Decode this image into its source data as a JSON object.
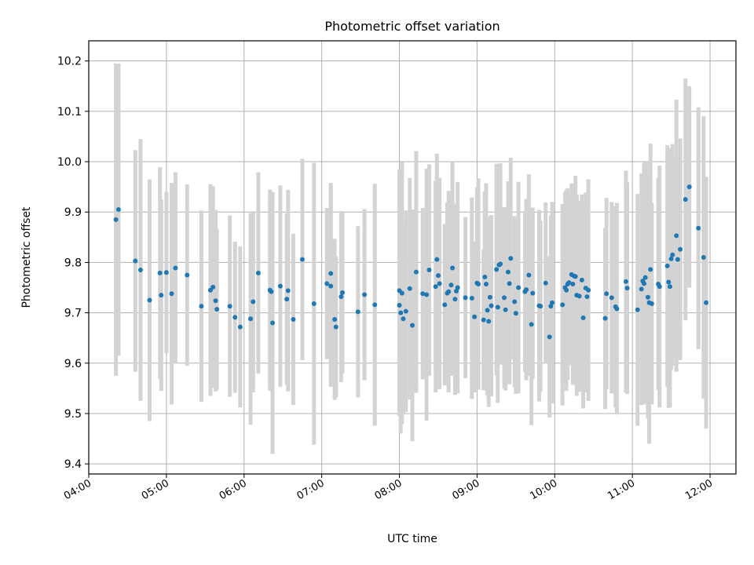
{
  "chart_data": {
    "type": "scatter",
    "title": "Photometric offset variation",
    "xlabel": "UTC time",
    "ylabel": "Photometric offset",
    "xlim": [
      "04:00",
      "12:20"
    ],
    "ylim": [
      9.38,
      10.24
    ],
    "grid": true,
    "x_ticks": [
      "04:00",
      "05:00",
      "06:00",
      "07:00",
      "08:00",
      "09:00",
      "10:00",
      "11:00",
      "12:00"
    ],
    "y_ticks": [
      "9.4",
      "9.5",
      "9.6",
      "9.7",
      "9.8",
      "9.9",
      "10.0",
      "10.1",
      "10.2"
    ],
    "colors": {
      "point": "#1f77b4",
      "errorbar": "#d3d3d3",
      "grid": "#b0b0b0"
    },
    "series": [
      {
        "columns": [
          "time",
          "offset",
          "error"
        ],
        "points": [
          [
            "04:21",
            9.885,
            0.31
          ],
          [
            "04:23",
            9.905,
            0.29
          ],
          [
            "04:36",
            9.803,
            0.22
          ],
          [
            "04:40",
            9.785,
            0.26
          ],
          [
            "04:47",
            9.725,
            0.24
          ],
          [
            "04:55",
            9.779,
            0.21
          ],
          [
            "04:56",
            9.735,
            0.19
          ],
          [
            "05:00",
            9.78,
            0.16
          ],
          [
            "05:04",
            9.738,
            0.22
          ],
          [
            "05:07",
            9.789,
            0.19
          ],
          [
            "05:16",
            9.775,
            0.18
          ],
          [
            "05:27",
            9.713,
            0.19
          ],
          [
            "05:34",
            9.745,
            0.21
          ],
          [
            "05:36",
            9.751,
            0.2
          ],
          [
            "05:38",
            9.724,
            0.18
          ],
          [
            "05:39",
            9.707,
            0.16
          ],
          [
            "05:49",
            9.713,
            0.18
          ],
          [
            "05:53",
            9.691,
            0.15
          ],
          [
            "05:57",
            9.672,
            0.16
          ],
          [
            "06:05",
            9.688,
            0.21
          ],
          [
            "06:07",
            9.722,
            0.18
          ],
          [
            "06:11",
            9.779,
            0.2
          ],
          [
            "06:20",
            9.745,
            0.2
          ],
          [
            "06:21",
            9.742,
            0.18
          ],
          [
            "06:22",
            9.68,
            0.26
          ],
          [
            "06:28",
            9.753,
            0.2
          ],
          [
            "06:33",
            9.727,
            0.17
          ],
          [
            "06:34",
            9.744,
            0.2
          ],
          [
            "06:38",
            9.687,
            0.17
          ],
          [
            "06:45",
            9.806,
            0.2
          ],
          [
            "06:54",
            9.718,
            0.28
          ],
          [
            "07:04",
            9.758,
            0.15
          ],
          [
            "07:07",
            9.778,
            0.18
          ],
          [
            "07:07",
            9.753,
            0.2
          ],
          [
            "07:10",
            9.687,
            0.16
          ],
          [
            "07:11",
            9.672,
            0.14
          ],
          [
            "07:15",
            9.732,
            0.17
          ],
          [
            "07:16",
            9.74,
            0.16
          ],
          [
            "07:28",
            9.702,
            0.17
          ],
          [
            "07:33",
            9.736,
            0.17
          ],
          [
            "07:41",
            9.716,
            0.24
          ],
          [
            "08:00",
            9.744,
            0.24
          ],
          [
            "08:00",
            9.715,
            0.22
          ],
          [
            "08:01",
            9.7,
            0.24
          ],
          [
            "08:02",
            9.739,
            0.26
          ],
          [
            "08:03",
            9.688,
            0.19
          ],
          [
            "08:05",
            9.703,
            0.2
          ],
          [
            "08:08",
            9.748,
            0.22
          ],
          [
            "08:10",
            9.675,
            0.23
          ],
          [
            "08:13",
            9.781,
            0.24
          ],
          [
            "08:18",
            9.738,
            0.17
          ],
          [
            "08:21",
            9.736,
            0.25
          ],
          [
            "08:23",
            9.785,
            0.21
          ],
          [
            "08:28",
            9.752,
            0.21
          ],
          [
            "08:29",
            9.806,
            0.21
          ],
          [
            "08:30",
            9.774,
            0.19
          ],
          [
            "08:31",
            9.758,
            0.21
          ],
          [
            "08:35",
            9.716,
            0.16
          ],
          [
            "08:37",
            9.739,
            0.18
          ],
          [
            "08:38",
            9.742,
            0.2
          ],
          [
            "08:40",
            9.755,
            0.18
          ],
          [
            "08:41",
            9.789,
            0.21
          ],
          [
            "08:43",
            9.727,
            0.19
          ],
          [
            "08:44",
            9.743,
            0.16
          ],
          [
            "08:45",
            9.75,
            0.21
          ],
          [
            "08:51",
            9.73,
            0.16
          ],
          [
            "08:56",
            9.729,
            0.2
          ],
          [
            "08:58",
            9.692,
            0.15
          ],
          [
            "09:00",
            9.759,
            0.19
          ],
          [
            "09:01",
            9.757,
            0.21
          ],
          [
            "09:05",
            9.686,
            0.14
          ],
          [
            "09:06",
            9.771,
            0.17
          ],
          [
            "09:07",
            9.757,
            0.2
          ],
          [
            "09:08",
            9.705,
            0.17
          ],
          [
            "09:09",
            9.683,
            0.17
          ],
          [
            "09:10",
            9.731,
            0.16
          ],
          [
            "09:11",
            9.714,
            0.18
          ],
          [
            "09:15",
            9.786,
            0.21
          ],
          [
            "09:16",
            9.711,
            0.19
          ],
          [
            "09:17",
            9.795,
            0.17
          ],
          [
            "09:18",
            9.797,
            0.2
          ],
          [
            "09:21",
            9.73,
            0.18
          ],
          [
            "09:22",
            9.706,
            0.16
          ],
          [
            "09:24",
            9.781,
            0.18
          ],
          [
            "09:25",
            9.758,
            0.2
          ],
          [
            "09:26",
            9.808,
            0.2
          ],
          [
            "09:29",
            9.722,
            0.17
          ],
          [
            "09:30",
            9.699,
            0.16
          ],
          [
            "09:32",
            9.75,
            0.21
          ],
          [
            "09:37",
            9.742,
            0.16
          ],
          [
            "09:38",
            9.746,
            0.18
          ],
          [
            "09:40",
            9.775,
            0.2
          ],
          [
            "09:42",
            9.677,
            0.2
          ],
          [
            "09:43",
            9.739,
            0.17
          ],
          [
            "09:48",
            9.714,
            0.19
          ],
          [
            "09:49",
            9.713,
            0.17
          ],
          [
            "09:53",
            9.759,
            0.16
          ],
          [
            "09:56",
            9.652,
            0.16
          ],
          [
            "09:57",
            9.713,
            0.18
          ],
          [
            "09:58",
            9.72,
            0.2
          ],
          [
            "10:06",
            9.716,
            0.2
          ],
          [
            "10:08",
            9.75,
            0.19
          ],
          [
            "10:09",
            9.745,
            0.2
          ],
          [
            "10:10",
            9.757,
            0.19
          ],
          [
            "10:11",
            9.76,
            0.16
          ],
          [
            "10:13",
            9.776,
            0.18
          ],
          [
            "10:14",
            9.757,
            0.2
          ],
          [
            "10:15",
            9.773,
            0.17
          ],
          [
            "10:16",
            9.772,
            0.2
          ],
          [
            "10:17",
            9.735,
            0.2
          ],
          [
            "10:19",
            9.733,
            0.19
          ],
          [
            "10:21",
            9.765,
            0.17
          ],
          [
            "10:22",
            9.69,
            0.18
          ],
          [
            "10:24",
            9.749,
            0.19
          ],
          [
            "10:25",
            9.732,
            0.19
          ],
          [
            "10:26",
            9.745,
            0.22
          ],
          [
            "10:39",
            9.689,
            0.18
          ],
          [
            "10:40",
            9.738,
            0.19
          ],
          [
            "10:44",
            9.73,
            0.19
          ],
          [
            "10:47",
            9.712,
            0.2
          ],
          [
            "10:48",
            9.708,
            0.21
          ],
          [
            "10:55",
            9.762,
            0.22
          ],
          [
            "10:56",
            9.749,
            0.21
          ],
          [
            "11:04",
            9.706,
            0.23
          ],
          [
            "11:07",
            9.747,
            0.23
          ],
          [
            "11:08",
            9.763,
            0.21
          ],
          [
            "11:09",
            9.758,
            0.24
          ],
          [
            "11:10",
            9.77,
            0.23
          ],
          [
            "11:12",
            9.731,
            0.24
          ],
          [
            "11:13",
            9.72,
            0.28
          ],
          [
            "11:14",
            9.786,
            0.25
          ],
          [
            "11:15",
            9.718,
            0.2
          ],
          [
            "11:20",
            9.757,
            0.21
          ],
          [
            "11:21",
            9.752,
            0.24
          ],
          [
            "11:27",
            9.793,
            0.24
          ],
          [
            "11:28",
            9.761,
            0.25
          ],
          [
            "11:29",
            9.752,
            0.24
          ],
          [
            "11:30",
            9.807,
            0.22
          ],
          [
            "11:31",
            9.815,
            0.22
          ],
          [
            "11:34",
            9.853,
            0.27
          ],
          [
            "11:35",
            9.806,
            0.2
          ],
          [
            "11:37",
            9.826,
            0.22
          ],
          [
            "11:41",
            9.925,
            0.24
          ],
          [
            "11:44",
            9.95,
            0.2
          ],
          [
            "11:51",
            9.868,
            0.24
          ],
          [
            "11:55",
            9.81,
            0.28
          ],
          [
            "11:57",
            9.72,
            0.25
          ]
        ]
      }
    ]
  }
}
